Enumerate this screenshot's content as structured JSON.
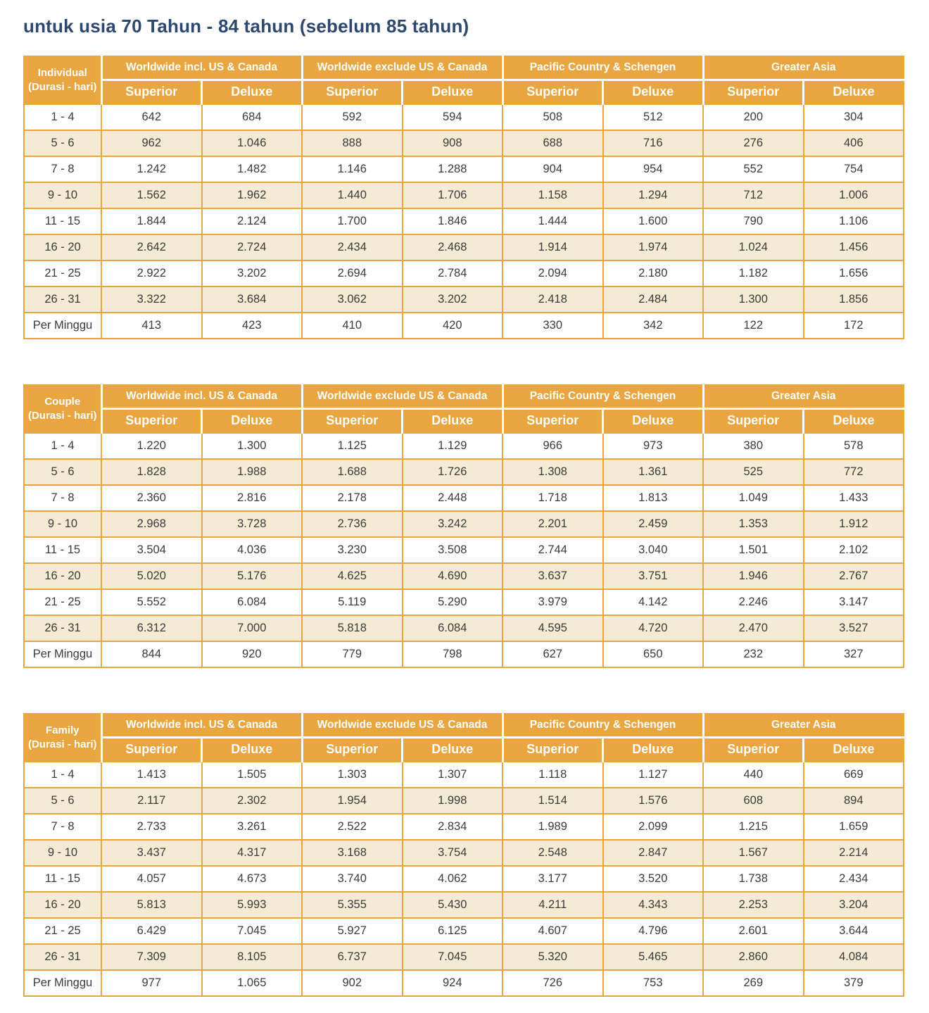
{
  "page": {
    "title": "untuk usia 70 Tahun - 84 tahun (sebelum 85 tahun)"
  },
  "colors": {
    "header_orange": "#E9A640",
    "row_stripe_cream": "#F5EBD4",
    "title_navy": "#2C4770",
    "cell_text": "#3B3B3B"
  },
  "shared": {
    "duration_note": "(Durasi - hari)",
    "region_headers": [
      "Worldwide incl. US & Canada",
      "Worldwide exclude US & Canada",
      "Pacific Country & Schengen",
      "Greater Asia"
    ],
    "tier_headers": [
      "Superior",
      "Deluxe"
    ]
  },
  "tables": [
    {
      "category": "Individual",
      "rows": [
        {
          "label": "1 - 4",
          "values": [
            "642",
            "684",
            "592",
            "594",
            "508",
            "512",
            "200",
            "304"
          ]
        },
        {
          "label": "5 - 6",
          "values": [
            "962",
            "1.046",
            "888",
            "908",
            "688",
            "716",
            "276",
            "406"
          ]
        },
        {
          "label": "7 - 8",
          "values": [
            "1.242",
            "1.482",
            "1.146",
            "1.288",
            "904",
            "954",
            "552",
            "754"
          ]
        },
        {
          "label": "9 - 10",
          "values": [
            "1.562",
            "1.962",
            "1.440",
            "1.706",
            "1.158",
            "1.294",
            "712",
            "1.006"
          ]
        },
        {
          "label": "11 - 15",
          "values": [
            "1.844",
            "2.124",
            "1.700",
            "1.846",
            "1.444",
            "1.600",
            "790",
            "1.106"
          ]
        },
        {
          "label": "16 - 20",
          "values": [
            "2.642",
            "2.724",
            "2.434",
            "2.468",
            "1.914",
            "1.974",
            "1.024",
            "1.456"
          ]
        },
        {
          "label": "21 - 25",
          "values": [
            "2.922",
            "3.202",
            "2.694",
            "2.784",
            "2.094",
            "2.180",
            "1.182",
            "1.656"
          ]
        },
        {
          "label": "26 - 31",
          "values": [
            "3.322",
            "3.684",
            "3.062",
            "3.202",
            "2.418",
            "2.484",
            "1.300",
            "1.856"
          ]
        },
        {
          "label": "Per Minggu",
          "values": [
            "413",
            "423",
            "410",
            "420",
            "330",
            "342",
            "122",
            "172"
          ]
        }
      ]
    },
    {
      "category": "Couple",
      "rows": [
        {
          "label": "1 - 4",
          "values": [
            "1.220",
            "1.300",
            "1.125",
            "1.129",
            "966",
            "973",
            "380",
            "578"
          ]
        },
        {
          "label": "5 - 6",
          "values": [
            "1.828",
            "1.988",
            "1.688",
            "1.726",
            "1.308",
            "1.361",
            "525",
            "772"
          ]
        },
        {
          "label": "7 - 8",
          "values": [
            "2.360",
            "2.816",
            "2.178",
            "2.448",
            "1.718",
            "1.813",
            "1.049",
            "1.433"
          ]
        },
        {
          "label": "9 - 10",
          "values": [
            "2.968",
            "3.728",
            "2.736",
            "3.242",
            "2.201",
            "2.459",
            "1.353",
            "1.912"
          ]
        },
        {
          "label": "11 - 15",
          "values": [
            "3.504",
            "4.036",
            "3.230",
            "3.508",
            "2.744",
            "3.040",
            "1.501",
            "2.102"
          ]
        },
        {
          "label": "16 - 20",
          "values": [
            "5.020",
            "5.176",
            "4.625",
            "4.690",
            "3.637",
            "3.751",
            "1.946",
            "2.767"
          ]
        },
        {
          "label": "21 - 25",
          "values": [
            "5.552",
            "6.084",
            "5.119",
            "5.290",
            "3.979",
            "4.142",
            "2.246",
            "3.147"
          ]
        },
        {
          "label": "26 - 31",
          "values": [
            "6.312",
            "7.000",
            "5.818",
            "6.084",
            "4.595",
            "4.720",
            "2.470",
            "3.527"
          ]
        },
        {
          "label": "Per Minggu",
          "values": [
            "844",
            "920",
            "779",
            "798",
            "627",
            "650",
            "232",
            "327"
          ]
        }
      ]
    },
    {
      "category": "Family",
      "rows": [
        {
          "label": "1 - 4",
          "values": [
            "1.413",
            "1.505",
            "1.303",
            "1.307",
            "1.118",
            "1.127",
            "440",
            "669"
          ]
        },
        {
          "label": "5 - 6",
          "values": [
            "2.117",
            "2.302",
            "1.954",
            "1.998",
            "1.514",
            "1.576",
            "608",
            "894"
          ]
        },
        {
          "label": "7 - 8",
          "values": [
            "2.733",
            "3.261",
            "2.522",
            "2.834",
            "1.989",
            "2.099",
            "1.215",
            "1.659"
          ]
        },
        {
          "label": "9 - 10",
          "values": [
            "3.437",
            "4.317",
            "3.168",
            "3.754",
            "2.548",
            "2.847",
            "1.567",
            "2.214"
          ]
        },
        {
          "label": "11 - 15",
          "values": [
            "4.057",
            "4.673",
            "3.740",
            "4.062",
            "3.177",
            "3.520",
            "1.738",
            "2.434"
          ]
        },
        {
          "label": "16 - 20",
          "values": [
            "5.813",
            "5.993",
            "5.355",
            "5.430",
            "4.211",
            "4.343",
            "2.253",
            "3.204"
          ]
        },
        {
          "label": "21 - 25",
          "values": [
            "6.429",
            "7.045",
            "5.927",
            "6.125",
            "4.607",
            "4.796",
            "2.601",
            "3.644"
          ]
        },
        {
          "label": "26 - 31",
          "values": [
            "7.309",
            "8.105",
            "6.737",
            "7.045",
            "5.320",
            "5.465",
            "2.860",
            "4.084"
          ]
        },
        {
          "label": "Per Minggu",
          "values": [
            "977",
            "1.065",
            "902",
            "924",
            "726",
            "753",
            "269",
            "379"
          ]
        }
      ]
    }
  ]
}
